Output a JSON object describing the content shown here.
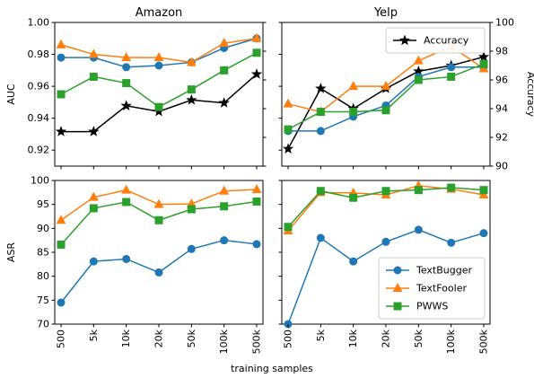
{
  "colors": {
    "TextBugger": "#1f77b4",
    "TextFooler": "#ff7f0e",
    "PWWS": "#2ca02c",
    "Accuracy": "#000000"
  },
  "chart_data": [
    {
      "type": "line",
      "panel": "top-left",
      "title": "Amazon",
      "ylabel": "AUC",
      "categories": [
        "500",
        "5k",
        "10k",
        "20k",
        "50k",
        "100k",
        "500k"
      ],
      "ylim": [
        0.91,
        1.0
      ],
      "yticks": [
        "0.92",
        "0.94",
        "0.96",
        "0.98",
        "1.00"
      ],
      "y2lim": [
        90,
        100
      ],
      "series": [
        {
          "name": "TextBugger",
          "values": [
            0.978,
            0.978,
            0.972,
            0.973,
            0.975,
            0.984,
            0.99
          ]
        },
        {
          "name": "TextFooler",
          "values": [
            0.986,
            0.98,
            0.978,
            0.978,
            0.975,
            0.987,
            0.99
          ]
        },
        {
          "name": "PWWS",
          "values": [
            0.955,
            0.966,
            0.962,
            0.947,
            0.958,
            0.97,
            0.981
          ]
        },
        {
          "name": "Accuracy",
          "axis": "right",
          "values": [
            92.4,
            92.4,
            94.2,
            93.8,
            94.6,
            94.4,
            96.4
          ]
        }
      ]
    },
    {
      "type": "line",
      "panel": "top-right",
      "title": "Yelp",
      "ylabel": "Accuracy",
      "categories": [
        "500",
        "5k",
        "10k",
        "20k",
        "50k",
        "100k",
        "500k"
      ],
      "ylim": [
        0.91,
        1.0
      ],
      "y2lim": [
        90,
        100
      ],
      "y2ticks": [
        "90",
        "92",
        "94",
        "96",
        "98",
        "100"
      ],
      "legend": {
        "entries": [
          "Accuracy"
        ],
        "position": "top-right"
      },
      "series": [
        {
          "name": "TextBugger",
          "values": [
            0.932,
            0.932,
            0.941,
            0.948,
            0.966,
            0.972,
            0.972
          ]
        },
        {
          "name": "TextFooler",
          "values": [
            0.949,
            0.944,
            0.96,
            0.96,
            0.976,
            0.985,
            0.971
          ]
        },
        {
          "name": "PWWS",
          "values": [
            0.933,
            0.944,
            0.944,
            0.945,
            0.964,
            0.966,
            0.974
          ]
        },
        {
          "name": "Accuracy",
          "axis": "right",
          "values": [
            91.2,
            95.4,
            94.0,
            95.4,
            96.6,
            97.0,
            97.6
          ]
        }
      ]
    },
    {
      "type": "line",
      "panel": "bottom-left",
      "ylabel": "ASR",
      "xlabel": "training samples",
      "categories": [
        "500",
        "5k",
        "10k",
        "20k",
        "50k",
        "100k",
        "500k"
      ],
      "ylim": [
        70,
        100
      ],
      "yticks": [
        "70",
        "75",
        "80",
        "85",
        "90",
        "95",
        "100"
      ],
      "series": [
        {
          "name": "TextBugger",
          "values": [
            74.5,
            83.1,
            83.6,
            80.8,
            85.7,
            87.5,
            86.7
          ]
        },
        {
          "name": "TextFooler",
          "values": [
            91.7,
            96.5,
            98.0,
            95.0,
            95.1,
            97.8,
            98.1
          ]
        },
        {
          "name": "PWWS",
          "values": [
            86.6,
            94.2,
            95.5,
            91.7,
            94.0,
            94.6,
            95.6
          ]
        }
      ]
    },
    {
      "type": "line",
      "panel": "bottom-right",
      "categories": [
        "500",
        "5k",
        "10k",
        "20k",
        "50k",
        "100k",
        "500k"
      ],
      "ylim": [
        70,
        100
      ],
      "legend": {
        "entries": [
          "TextBugger",
          "TextFooler",
          "PWWS"
        ],
        "position": "bottom-right"
      },
      "series": [
        {
          "name": "TextBugger",
          "values": [
            70.0,
            88.0,
            83.1,
            87.2,
            89.7,
            87.0,
            89.0
          ]
        },
        {
          "name": "TextFooler",
          "values": [
            89.5,
            97.5,
            97.4,
            97.0,
            98.9,
            98.2,
            97.0
          ]
        },
        {
          "name": "PWWS",
          "values": [
            90.3,
            97.8,
            96.4,
            97.8,
            98.0,
            98.5,
            98.0
          ]
        }
      ]
    }
  ]
}
